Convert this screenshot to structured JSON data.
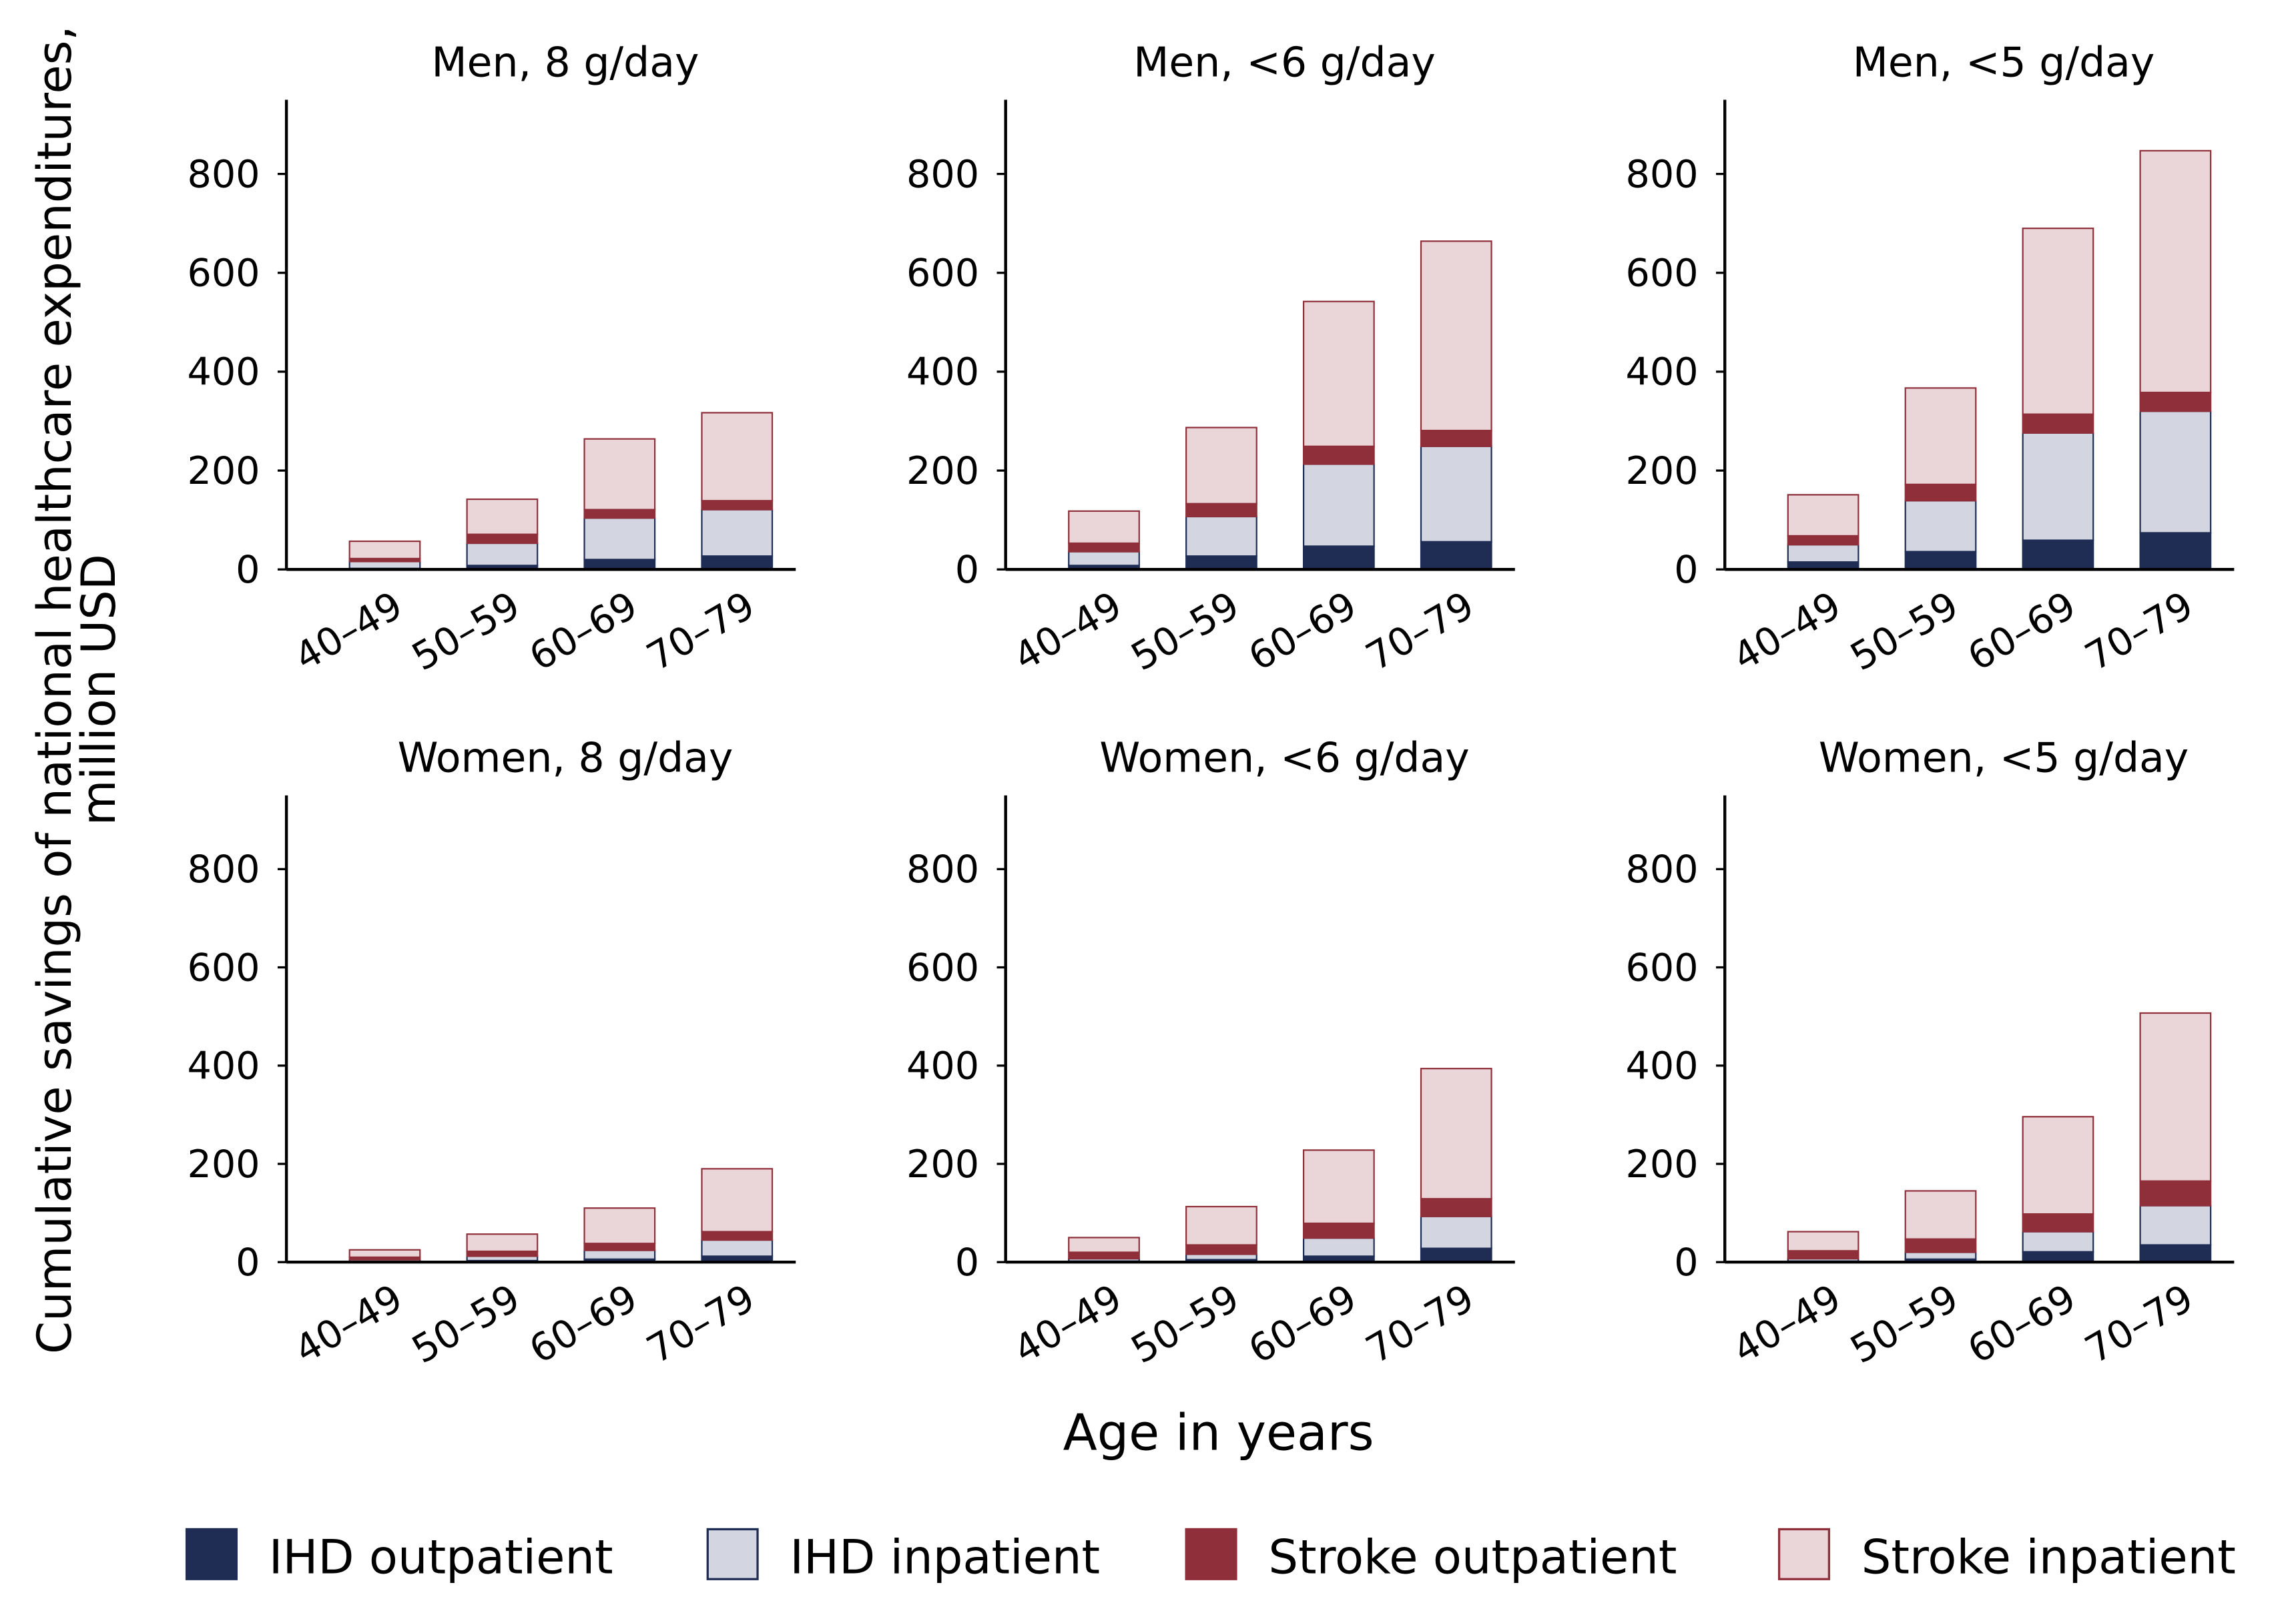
{
  "ylabel": [
    "Cumulative savings of national healthcare expenditures,",
    "million USD"
  ],
  "xlabel": "Age in years",
  "chart_data": [
    {
      "type": "bar",
      "stacked": true,
      "title": "Men, 8 g/day",
      "categories": [
        "40–49",
        "50–59",
        "60–69",
        "70–79"
      ],
      "ylim": [
        0,
        950
      ],
      "yticks": [
        0,
        200,
        400,
        600,
        800
      ],
      "series": [
        {
          "name": "IHD outpatient",
          "color": "#1f2d55",
          "edgecolor": "#1f2d55",
          "values": [
            2,
            8,
            20,
            27
          ]
        },
        {
          "name": "IHD inpatient",
          "color": "#d3d6e0",
          "edgecolor": "#1f2d55",
          "values": [
            14,
            45,
            84,
            94
          ]
        },
        {
          "name": "Stroke outpatient",
          "color": "#8e2f3a",
          "edgecolor": "#8e2f3a",
          "values": [
            6,
            18,
            17,
            18
          ]
        },
        {
          "name": "Stroke inpatient",
          "color": "#ead5d8",
          "edgecolor": "#8e2f3a",
          "values": [
            35,
            71,
            143,
            178
          ]
        }
      ]
    },
    {
      "type": "bar",
      "stacked": true,
      "title": "Men, <6 g/day",
      "categories": [
        "40–49",
        "50–59",
        "60–69",
        "70–79"
      ],
      "ylim": [
        0,
        950
      ],
      "yticks": [
        0,
        200,
        400,
        600,
        800
      ],
      "series": [
        {
          "name": "IHD outpatient",
          "color": "#1f2d55",
          "edgecolor": "#1f2d55",
          "values": [
            8,
            27,
            47,
            56
          ]
        },
        {
          "name": "IHD inpatient",
          "color": "#d3d6e0",
          "edgecolor": "#1f2d55",
          "values": [
            28,
            80,
            166,
            193
          ]
        },
        {
          "name": "Stroke outpatient",
          "color": "#8e2f3a",
          "edgecolor": "#8e2f3a",
          "values": [
            17,
            26,
            36,
            32
          ]
        },
        {
          "name": "Stroke inpatient",
          "color": "#ead5d8",
          "edgecolor": "#8e2f3a",
          "values": [
            65,
            154,
            293,
            383
          ]
        }
      ]
    },
    {
      "type": "bar",
      "stacked": true,
      "title": "Men, <5 g/day",
      "categories": [
        "40–49",
        "50–59",
        "60–69",
        "70–79"
      ],
      "ylim": [
        0,
        950
      ],
      "yticks": [
        0,
        200,
        400,
        600,
        800
      ],
      "series": [
        {
          "name": "IHD outpatient",
          "color": "#1f2d55",
          "edgecolor": "#1f2d55",
          "values": [
            15,
            36,
            59,
            74
          ]
        },
        {
          "name": "IHD inpatient",
          "color": "#d3d6e0",
          "edgecolor": "#1f2d55",
          "values": [
            35,
            103,
            217,
            246
          ]
        },
        {
          "name": "Stroke outpatient",
          "color": "#8e2f3a",
          "edgecolor": "#8e2f3a",
          "values": [
            18,
            33,
            38,
            38
          ]
        },
        {
          "name": "Stroke inpatient",
          "color": "#ead5d8",
          "edgecolor": "#8e2f3a",
          "values": [
            83,
            195,
            376,
            489
          ]
        }
      ]
    },
    {
      "type": "bar",
      "stacked": true,
      "title": "Women, 8 g/day",
      "categories": [
        "40–49",
        "50–59",
        "60–69",
        "70–79"
      ],
      "ylim": [
        0,
        950
      ],
      "yticks": [
        0,
        200,
        400,
        600,
        800
      ],
      "series": [
        {
          "name": "IHD outpatient",
          "color": "#1f2d55",
          "edgecolor": "#1f2d55",
          "values": [
            1,
            3,
            6,
            12
          ]
        },
        {
          "name": "IHD inpatient",
          "color": "#d3d6e0",
          "edgecolor": "#1f2d55",
          "values": [
            4,
            9,
            18,
            33
          ]
        },
        {
          "name": "Stroke outpatient",
          "color": "#8e2f3a",
          "edgecolor": "#8e2f3a",
          "values": [
            5,
            10,
            14,
            17
          ]
        },
        {
          "name": "Stroke inpatient",
          "color": "#ead5d8",
          "edgecolor": "#8e2f3a",
          "values": [
            15,
            35,
            72,
            128
          ]
        }
      ]
    },
    {
      "type": "bar",
      "stacked": true,
      "title": "Women, <6 g/day",
      "categories": [
        "40–49",
        "50–59",
        "60–69",
        "70–79"
      ],
      "ylim": [
        0,
        950
      ],
      "yticks": [
        0,
        200,
        400,
        600,
        800
      ],
      "series": [
        {
          "name": "IHD outpatient",
          "color": "#1f2d55",
          "edgecolor": "#1f2d55",
          "values": [
            2,
            5,
            12,
            28
          ]
        },
        {
          "name": "IHD inpatient",
          "color": "#d3d6e0",
          "edgecolor": "#1f2d55",
          "values": [
            5,
            11,
            37,
            65
          ]
        },
        {
          "name": "Stroke outpatient",
          "color": "#8e2f3a",
          "edgecolor": "#8e2f3a",
          "values": [
            13,
            19,
            30,
            36
          ]
        },
        {
          "name": "Stroke inpatient",
          "color": "#ead5d8",
          "edgecolor": "#8e2f3a",
          "values": [
            30,
            78,
            149,
            265
          ]
        }
      ]
    },
    {
      "type": "bar",
      "stacked": true,
      "title": "Women, <5 g/day",
      "categories": [
        "40–49",
        "50–59",
        "60–69",
        "70–79"
      ],
      "ylim": [
        0,
        950
      ],
      "yticks": [
        0,
        200,
        400,
        600,
        800
      ],
      "series": [
        {
          "name": "IHD outpatient",
          "color": "#1f2d55",
          "edgecolor": "#1f2d55",
          "values": [
            2,
            6,
            21,
            35
          ]
        },
        {
          "name": "IHD inpatient",
          "color": "#d3d6e0",
          "edgecolor": "#1f2d55",
          "values": [
            5,
            14,
            41,
            80
          ]
        },
        {
          "name": "Stroke outpatient",
          "color": "#8e2f3a",
          "edgecolor": "#8e2f3a",
          "values": [
            16,
            27,
            36,
            50
          ]
        },
        {
          "name": "Stroke inpatient",
          "color": "#ead5d8",
          "edgecolor": "#8e2f3a",
          "values": [
            39,
            98,
            198,
            342
          ]
        }
      ]
    }
  ]
}
